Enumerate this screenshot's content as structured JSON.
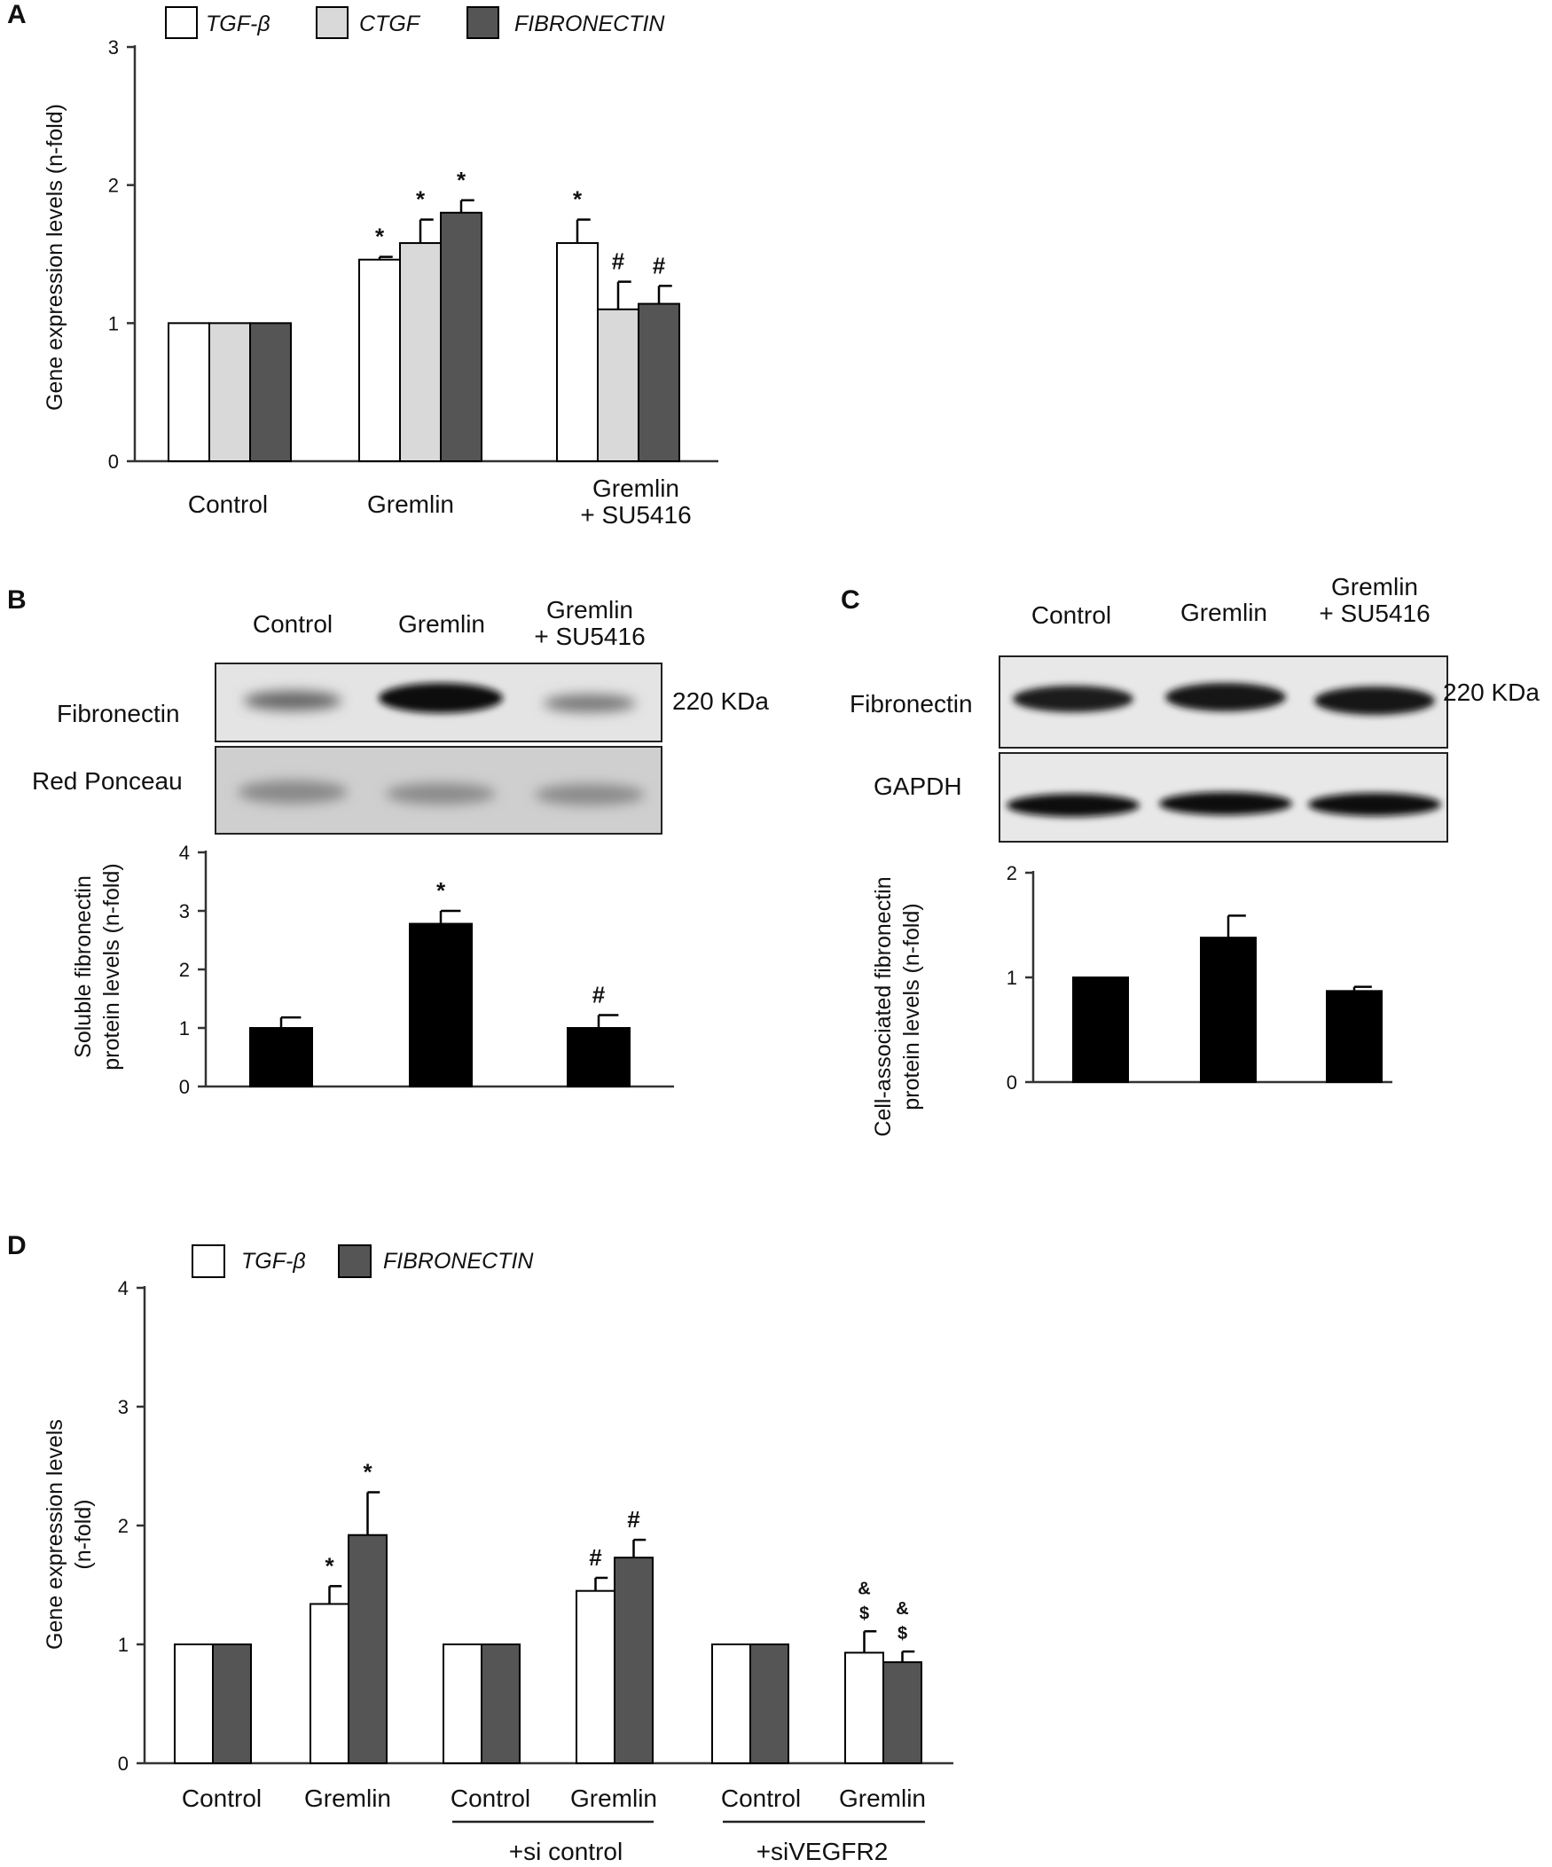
{
  "colors": {
    "tgf": "#ffffff",
    "ctgf": "#d9d9d9",
    "fibronectin": "#555555",
    "black": "#000000"
  },
  "chart_data": [
    {
      "panel": "A",
      "type": "bar",
      "ylabel": "Gene expression levels (n-fold)",
      "ylim": [
        0,
        3
      ],
      "yticks": [
        "0",
        "1",
        "2",
        "3"
      ],
      "categories": [
        "Control",
        "Gremlin",
        "Gremlin\n+ SU5416"
      ],
      "series": [
        {
          "name": "TGF-β",
          "color": "#ffffff",
          "values": [
            1.0,
            1.46,
            1.58
          ],
          "err": [
            0.0,
            0.02,
            0.17
          ],
          "sig": [
            "",
            "*",
            "*"
          ]
        },
        {
          "name": "CTGF",
          "color": "#d9d9d9",
          "values": [
            1.0,
            1.58,
            1.1
          ],
          "err": [
            0.0,
            0.17,
            0.2
          ],
          "sig": [
            "",
            "*",
            "#"
          ]
        },
        {
          "name": "FIBRONECTIN",
          "color": "#555555",
          "values": [
            1.0,
            1.8,
            1.14
          ],
          "err": [
            0.0,
            0.09,
            0.13
          ],
          "sig": [
            "",
            "*",
            "#"
          ]
        }
      ],
      "legend": "top"
    },
    {
      "panel": "B",
      "type": "bar",
      "ylabel": "Soluble fibronectin protein levels (n-fold)",
      "ylim": [
        0,
        4
      ],
      "yticks": [
        "0",
        "1",
        "2",
        "3",
        "4"
      ],
      "categories": [
        "Control",
        "Gremlin",
        "Gremlin + SU5416"
      ],
      "values": [
        1.0,
        2.78,
        1.0
      ],
      "err": [
        0.18,
        0.22,
        0.22
      ],
      "sig": [
        "",
        "*",
        "#"
      ]
    },
    {
      "panel": "C",
      "type": "bar",
      "ylabel": "Cell-associated fibronectin protein levels (n-fold)",
      "ylim": [
        0,
        2
      ],
      "yticks": [
        "0",
        "1",
        "2"
      ],
      "categories": [
        "Control",
        "Gremlin",
        "Gremlin + SU5416"
      ],
      "values": [
        1.0,
        1.38,
        0.87
      ],
      "err": [
        0.0,
        0.21,
        0.04
      ],
      "sig": [
        "",
        "",
        ""
      ]
    },
    {
      "panel": "D",
      "type": "bar",
      "ylabel": "Gene expression levels (n-fold)",
      "ylim": [
        0,
        4
      ],
      "yticks": [
        "0",
        "1",
        "2",
        "3",
        "4"
      ],
      "categories": [
        "Control",
        "Gremlin",
        "Control",
        "Gremlin",
        "Control",
        "Gremlin"
      ],
      "group_labels": [
        "+si control",
        "+siVEGFR2"
      ],
      "series": [
        {
          "name": "TGF-β",
          "color": "#ffffff",
          "values": [
            1.0,
            1.34,
            1.0,
            1.45,
            1.0,
            0.93
          ],
          "err": [
            0.0,
            0.15,
            0.0,
            0.11,
            0.0,
            0.18
          ],
          "sig": [
            "",
            "*",
            "",
            "#",
            "",
            "&\n$"
          ]
        },
        {
          "name": "FIBRONECTIN",
          "color": "#555555",
          "values": [
            1.0,
            1.92,
            1.0,
            1.73,
            1.0,
            0.85
          ],
          "err": [
            0.0,
            0.36,
            0.0,
            0.15,
            0.0,
            0.09
          ],
          "sig": [
            "",
            "*",
            "",
            "#",
            "",
            "&\n$"
          ]
        }
      ],
      "legend": "top"
    }
  ],
  "blots": {
    "B": {
      "top_label": "Fibronectin",
      "bottom_label": "Red Ponceau",
      "kda": "220 KDa",
      "lanes": [
        "Control",
        "Gremlin",
        "Gremlin\n+ SU5416"
      ]
    },
    "C": {
      "top_label": "Fibronectin",
      "bottom_label": "GAPDH",
      "kda": "220 KDa",
      "lanes": [
        "Control",
        "Gremlin",
        "Gremlin\n+ SU5416"
      ]
    }
  },
  "panel_labels": [
    "A",
    "B",
    "C",
    "D"
  ]
}
